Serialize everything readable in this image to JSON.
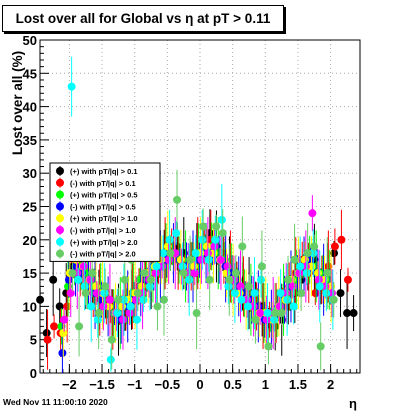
{
  "window": {
    "date_stamp": "Wed Nov 11 11:00:10 2020"
  },
  "chart_data": {
    "type": "scatter",
    "title": "Lost over all for Global vs   η at pT > 0.11",
    "xlabel": "η",
    "ylabel": "Lost over all (%)",
    "xlim": [
      -2.45,
      2.45
    ],
    "ylim": [
      0,
      50
    ],
    "x_ticks": [
      -2,
      -1.5,
      -1,
      -0.5,
      0,
      0.5,
      1,
      1.5,
      2
    ],
    "y_ticks": [
      0,
      5,
      10,
      15,
      20,
      25,
      30,
      35,
      40,
      45,
      50
    ],
    "grid": true,
    "legend_position": "middle-left",
    "series": [
      {
        "name": "(+) with pT/|q| > 0.1",
        "color": "#000000",
        "x": [
          -2.4,
          -2.3,
          -2.2,
          -2.1,
          -2.0,
          -1.9,
          -1.8,
          -1.7,
          -1.6,
          -1.5,
          -1.4,
          -1.3,
          -1.2,
          -1.1,
          -1.0,
          -0.9,
          -0.8,
          -0.7,
          -0.6,
          -0.5,
          -0.4,
          -0.3,
          -0.2,
          -0.1,
          0.0,
          0.1,
          0.2,
          0.3,
          0.4,
          0.5,
          0.6,
          0.7,
          0.8,
          0.9,
          1.0,
          1.1,
          1.2,
          1.3,
          1.4,
          1.5,
          1.6,
          1.7,
          1.8,
          1.9,
          2.0,
          2.1,
          2.2,
          2.3,
          2.4
        ],
        "y": [
          11,
          6,
          14,
          10,
          12,
          16,
          17,
          15,
          13,
          11,
          10,
          9,
          8,
          9,
          11,
          12,
          14,
          15,
          16,
          17,
          18,
          19,
          18,
          17,
          18,
          20,
          21,
          19,
          18,
          16,
          15,
          13,
          12,
          11,
          10,
          8,
          7,
          8,
          10,
          12,
          14,
          16,
          17,
          13,
          15,
          18,
          12,
          9,
          9
        ]
      },
      {
        "name": "(-) with pT/|q| > 0.1",
        "color": "#ff0000",
        "x": [
          -2.3,
          -2.2,
          -2.1,
          -2.0,
          -1.9,
          -1.8,
          -1.7,
          -1.6,
          -1.5,
          -1.4,
          -1.3,
          -1.2,
          -1.1,
          -1.0,
          -0.9,
          -0.8,
          -0.7,
          -0.6,
          -0.5,
          -0.4,
          -0.3,
          -0.2,
          -0.1,
          0.0,
          0.1,
          0.2,
          0.3,
          0.4,
          0.5,
          0.6,
          0.7,
          0.8,
          0.9,
          1.0,
          1.1,
          1.2,
          1.3,
          1.4,
          1.5,
          1.6,
          1.7,
          1.8,
          1.9,
          2.0,
          2.1,
          2.2,
          2.3
        ],
        "y": [
          5,
          7,
          6,
          10,
          17,
          16,
          14,
          12,
          11,
          10,
          8,
          9,
          10,
          12,
          13,
          15,
          16,
          17,
          18,
          19,
          17,
          16,
          16,
          18,
          19,
          20,
          18,
          17,
          16,
          14,
          13,
          11,
          10,
          9,
          8,
          9,
          11,
          13,
          15,
          17,
          15,
          12,
          14,
          16,
          19,
          20,
          14
        ]
      },
      {
        "name": "(+) with pT/|q| > 0.5",
        "color": "#00ff00",
        "x": [
          -2.1,
          -2.0,
          -1.9,
          -1.8,
          -1.7,
          -1.6,
          -1.5,
          -1.4,
          -1.3,
          -1.2,
          -1.1,
          -1.0,
          -0.9,
          -0.8,
          -0.7,
          -0.6,
          -0.5,
          -0.4,
          -0.3,
          -0.2,
          -0.1,
          0.0,
          0.1,
          0.2,
          0.3,
          0.4,
          0.5,
          0.6,
          0.7,
          0.8,
          0.9,
          1.0,
          1.1,
          1.2,
          1.3,
          1.4,
          1.5,
          1.6,
          1.7,
          1.8,
          1.9,
          2.0
        ],
        "y": [
          7,
          13,
          15,
          16,
          15,
          13,
          12,
          10,
          9,
          9,
          10,
          12,
          14,
          15,
          16,
          17,
          18,
          18,
          17,
          16,
          17,
          18,
          19,
          19,
          18,
          17,
          15,
          14,
          12,
          11,
          10,
          9,
          8,
          9,
          11,
          12,
          14,
          16,
          17,
          16,
          15,
          14
        ]
      },
      {
        "name": "(-) with pT/|q| > 0.5",
        "color": "#0000ff",
        "x": [
          -2.1,
          -2.0,
          -1.9,
          -1.8,
          -1.7,
          -1.6,
          -1.5,
          -1.4,
          -1.3,
          -1.2,
          -1.1,
          -1.0,
          -0.9,
          -0.8,
          -0.7,
          -0.6,
          -0.5,
          -0.4,
          -0.3,
          -0.2,
          -0.1,
          0.0,
          0.1,
          0.2,
          0.3,
          0.4,
          0.5,
          0.6,
          0.7,
          0.8,
          0.9,
          1.0,
          1.1,
          1.2,
          1.3,
          1.4,
          1.5,
          1.6,
          1.7,
          1.8,
          1.9,
          2.0
        ],
        "y": [
          3,
          14,
          16,
          15,
          14,
          12,
          11,
          10,
          9,
          8,
          10,
          11,
          13,
          14,
          16,
          16,
          17,
          18,
          17,
          16,
          16,
          17,
          18,
          18,
          17,
          16,
          15,
          13,
          12,
          11,
          10,
          8,
          8,
          10,
          11,
          13,
          15,
          16,
          17,
          15,
          14,
          13
        ]
      },
      {
        "name": "(+) with pT/|q| > 1.0",
        "color": "#ffff00",
        "x": [
          -2.1,
          -2.0,
          -1.9,
          -1.8,
          -1.7,
          -1.6,
          -1.5,
          -1.4,
          -1.3,
          -1.2,
          -1.1,
          -1.0,
          -0.9,
          -0.8,
          -0.7,
          -0.6,
          -0.5,
          -0.4,
          -0.3,
          -0.2,
          -0.1,
          0.0,
          0.1,
          0.2,
          0.3,
          0.4,
          0.5,
          0.6,
          0.7,
          0.8,
          0.9,
          1.0,
          1.1,
          1.2,
          1.3,
          1.4,
          1.5,
          1.6,
          1.7,
          1.8,
          1.9,
          2.0
        ],
        "y": [
          6,
          15,
          17,
          16,
          14,
          13,
          12,
          10,
          9,
          10,
          11,
          12,
          13,
          15,
          16,
          17,
          19,
          18,
          17,
          15,
          16,
          18,
          19,
          18,
          17,
          15,
          14,
          12,
          11,
          10,
          9,
          9,
          8,
          10,
          11,
          14,
          15,
          17,
          16,
          15,
          14,
          13
        ]
      },
      {
        "name": "(-) with pT/|q| > 1.0",
        "color": "#ff00ff",
        "x": [
          -2.1,
          -2.0,
          -1.9,
          -1.8,
          -1.7,
          -1.6,
          -1.5,
          -1.4,
          -1.3,
          -1.2,
          -1.1,
          -1.0,
          -0.9,
          -0.8,
          -0.7,
          -0.6,
          -0.5,
          -0.4,
          -0.3,
          -0.2,
          -0.1,
          0.0,
          0.1,
          0.2,
          0.3,
          0.4,
          0.5,
          0.6,
          0.7,
          0.8,
          0.9,
          1.0,
          1.1,
          1.2,
          1.3,
          1.4,
          1.5,
          1.6,
          1.7,
          1.8,
          1.9,
          2.0
        ],
        "y": [
          8,
          12,
          15,
          16,
          14,
          12,
          10,
          11,
          9,
          8,
          9,
          11,
          12,
          14,
          15,
          16,
          17,
          18,
          16,
          15,
          15,
          17,
          18,
          19,
          17,
          16,
          14,
          13,
          11,
          10,
          9,
          8,
          9,
          10,
          12,
          13,
          15,
          16,
          24,
          14,
          13,
          12
        ]
      },
      {
        "name": "(+) with pT/|q| > 2.0",
        "color": "#00ffff",
        "x": [
          -2.0,
          -1.9,
          -1.8,
          -1.7,
          -1.6,
          -1.5,
          -1.4,
          -1.3,
          -1.2,
          -1.1,
          -1.0,
          -0.9,
          -0.8,
          -0.7,
          -0.6,
          -0.5,
          -0.4,
          -0.3,
          -0.2,
          -0.1,
          0.0,
          0.1,
          0.2,
          0.3,
          0.4,
          0.5,
          0.6,
          0.7,
          0.8,
          0.9,
          1.0,
          1.1,
          1.2,
          1.3,
          1.4,
          1.5,
          1.6,
          1.7,
          1.8,
          1.9,
          2.0
        ],
        "y": [
          43,
          14,
          13,
          10,
          8,
          12,
          2,
          9,
          11,
          10,
          8,
          11,
          13,
          16,
          18,
          20,
          21,
          16,
          14,
          18,
          20,
          17,
          20,
          23,
          13,
          12,
          11,
          10,
          12,
          14,
          9,
          8,
          12,
          11,
          10,
          16,
          15,
          18,
          13,
          12,
          11
        ]
      },
      {
        "name": "(-) with pT/|q| > 2.0",
        "color": "#66cc66",
        "x": [
          -2.0,
          -1.9,
          -1.8,
          -1.7,
          -1.6,
          -1.5,
          -1.4,
          -1.3,
          -1.2,
          -1.1,
          -1.0,
          -0.9,
          -0.8,
          -0.7,
          -0.6,
          -0.5,
          -0.4,
          -0.3,
          -0.2,
          -0.1,
          0.0,
          0.1,
          0.2,
          0.3,
          0.4,
          0.5,
          0.6,
          0.7,
          0.8,
          0.9,
          1.0,
          1.1,
          1.2,
          1.3,
          1.4,
          1.5,
          1.6,
          1.7,
          1.8,
          1.9,
          2.0
        ],
        "y": [
          15,
          7,
          12,
          15,
          9,
          13,
          5,
          11,
          14,
          17,
          12,
          15,
          14,
          10,
          11,
          18,
          26,
          15,
          17,
          9,
          22,
          14,
          22,
          21,
          14,
          15,
          19,
          13,
          8,
          16,
          4,
          9,
          9,
          14,
          17,
          12,
          18,
          19,
          4,
          15,
          11
        ]
      }
    ]
  }
}
